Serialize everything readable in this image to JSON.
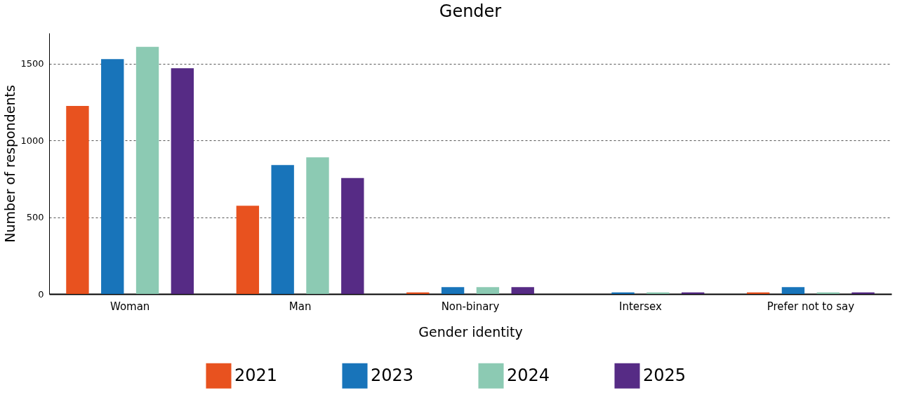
{
  "chart_data": {
    "type": "bar",
    "title": "Gender",
    "xlabel": "Gender identity",
    "ylabel": "Number of respondents",
    "categories": [
      "Woman",
      "Man",
      "Non-binary",
      "Intersex",
      "Prefer not to say"
    ],
    "series": [
      {
        "name": "2021",
        "color": "#e8521f",
        "values": [
          1225,
          575,
          10,
          0,
          10
        ]
      },
      {
        "name": "2023",
        "color": "#1874ba",
        "values": [
          1530,
          840,
          45,
          10,
          45
        ]
      },
      {
        "name": "2024",
        "color": "#8ccab3",
        "values": [
          1610,
          890,
          45,
          10,
          10
        ]
      },
      {
        "name": "2025",
        "color": "#562b85",
        "values": [
          1470,
          755,
          45,
          10,
          10
        ]
      }
    ],
    "ylim": [
      0,
      1700
    ],
    "yticks": [
      0,
      500,
      1000,
      1500
    ],
    "grid": "y",
    "legend": "bottom"
  }
}
